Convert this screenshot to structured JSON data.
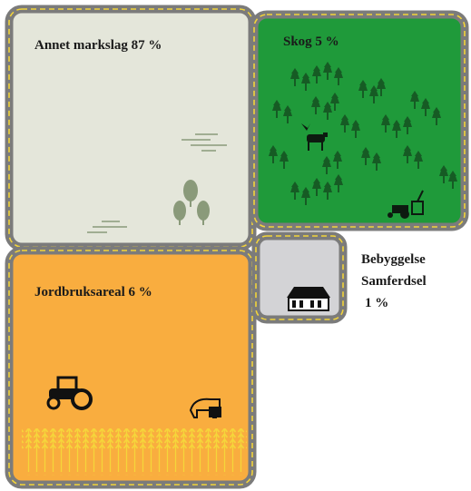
{
  "panels": [
    {
      "label": "Annet markslag 87 %"
    },
    {
      "label": "Skog 5 %"
    },
    {
      "label": "Jordbruksareal 6 %"
    },
    {
      "lines": [
        "Bebyggelse",
        "Samferdsel",
        "1 %"
      ]
    }
  ]
}
